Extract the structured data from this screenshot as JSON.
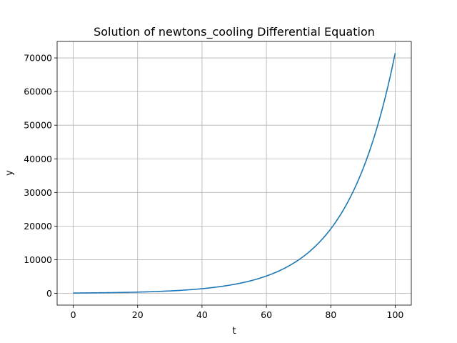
{
  "chart_data": {
    "type": "line",
    "title": "Solution of newtons_cooling Differential Equation",
    "xlabel": "t",
    "ylabel": "y",
    "xlim": [
      -5,
      105
    ],
    "ylim": [
      -3500,
      74900
    ],
    "xticks": [
      0,
      20,
      40,
      60,
      80,
      100
    ],
    "yticks": [
      0,
      10000,
      20000,
      30000,
      40000,
      50000,
      60000,
      70000
    ],
    "grid": true,
    "series": [
      {
        "color": "#1f77b4",
        "x": [
          0,
          5,
          10,
          15,
          20,
          25,
          30,
          35,
          40,
          45,
          50,
          55,
          60,
          65,
          70,
          75,
          80,
          85,
          90,
          95,
          100
        ],
        "y": [
          100,
          139,
          193,
          268,
          372,
          517,
          718,
          998,
          1386,
          1925,
          2673,
          3713,
          5157,
          7163,
          9949,
          13818,
          19193,
          26658,
          37027,
          51428,
          71430
        ]
      }
    ]
  }
}
